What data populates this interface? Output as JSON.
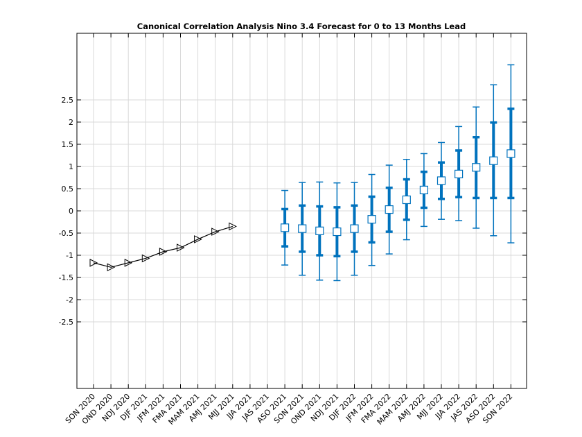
{
  "chart_data": {
    "type": "line",
    "title": "Canonical Correlation Analysis Nino 3.4 Forecast for 0 to 13 Months Lead",
    "xlabel": "",
    "ylabel": "",
    "ylim": [
      -4,
      4
    ],
    "yticks": [
      -2.5,
      -2,
      -1.5,
      -1,
      -0.5,
      0,
      0.5,
      1,
      1.5,
      2,
      2.5
    ],
    "ytick_labels": [
      "-2.5",
      "-2",
      "-1.5",
      "-1",
      "-0.5",
      "0",
      "0.5",
      "1",
      "1.5",
      "2",
      "2.5"
    ],
    "grid": true,
    "categories": [
      "SON 2020",
      "OND 2020",
      "NDJ 2020",
      "DJF 2021",
      "JFM 2021",
      "FMA 2021",
      "MAM 2021",
      "AMJ 2021",
      "MJJ 2021",
      "JJA 2021",
      "JAS 2021",
      "ASO 2021",
      "SON 2021",
      "OND 2021",
      "NDJ 2021",
      "DJF 2022",
      "JFM 2022",
      "FMA 2022",
      "MAM 2022",
      "AMJ 2022",
      "MJJ 2022",
      "JJA 2022",
      "JAS 2022",
      "ASO 2022",
      "SON 2022"
    ],
    "colors": {
      "observed": "#000000",
      "forecast": "#0072BD",
      "grid": "#d9d9d9"
    },
    "series": [
      {
        "marker": "triangle-right",
        "values": [
          -1.17,
          -1.27,
          -1.17,
          -1.07,
          -0.92,
          -0.83,
          -0.64,
          -0.47,
          -0.35,
          null,
          null,
          null,
          null,
          null,
          null,
          null,
          null,
          null,
          null,
          null,
          null,
          null,
          null,
          null,
          null
        ]
      },
      {
        "marker": "square",
        "values": [
          null,
          null,
          null,
          null,
          null,
          null,
          null,
          null,
          null,
          null,
          null,
          -0.38,
          -0.4,
          -0.45,
          -0.47,
          -0.4,
          -0.19,
          0.03,
          0.25,
          0.47,
          0.68,
          0.83,
          0.98,
          1.13,
          1.29
        ],
        "inner_low": [
          null,
          null,
          null,
          null,
          null,
          null,
          null,
          null,
          null,
          null,
          null,
          -0.8,
          -0.92,
          -1.0,
          -1.02,
          -0.92,
          -0.71,
          -0.47,
          -0.2,
          0.07,
          0.27,
          0.31,
          0.29,
          0.29,
          0.29
        ],
        "inner_high": [
          null,
          null,
          null,
          null,
          null,
          null,
          null,
          null,
          null,
          null,
          null,
          0.04,
          0.12,
          0.1,
          0.08,
          0.12,
          0.32,
          0.52,
          0.71,
          0.88,
          1.09,
          1.36,
          1.66,
          1.99,
          2.3
        ],
        "outer_low": [
          null,
          null,
          null,
          null,
          null,
          null,
          null,
          null,
          null,
          null,
          null,
          -1.22,
          -1.45,
          -1.56,
          -1.57,
          -1.45,
          -1.23,
          -0.97,
          -0.65,
          -0.35,
          -0.19,
          -0.22,
          -0.39,
          -0.56,
          -0.72
        ],
        "outer_high": [
          null,
          null,
          null,
          null,
          null,
          null,
          null,
          null,
          null,
          null,
          null,
          0.46,
          0.64,
          0.65,
          0.63,
          0.64,
          0.82,
          1.03,
          1.16,
          1.29,
          1.54,
          1.9,
          2.34,
          2.84,
          3.29
        ]
      }
    ]
  }
}
